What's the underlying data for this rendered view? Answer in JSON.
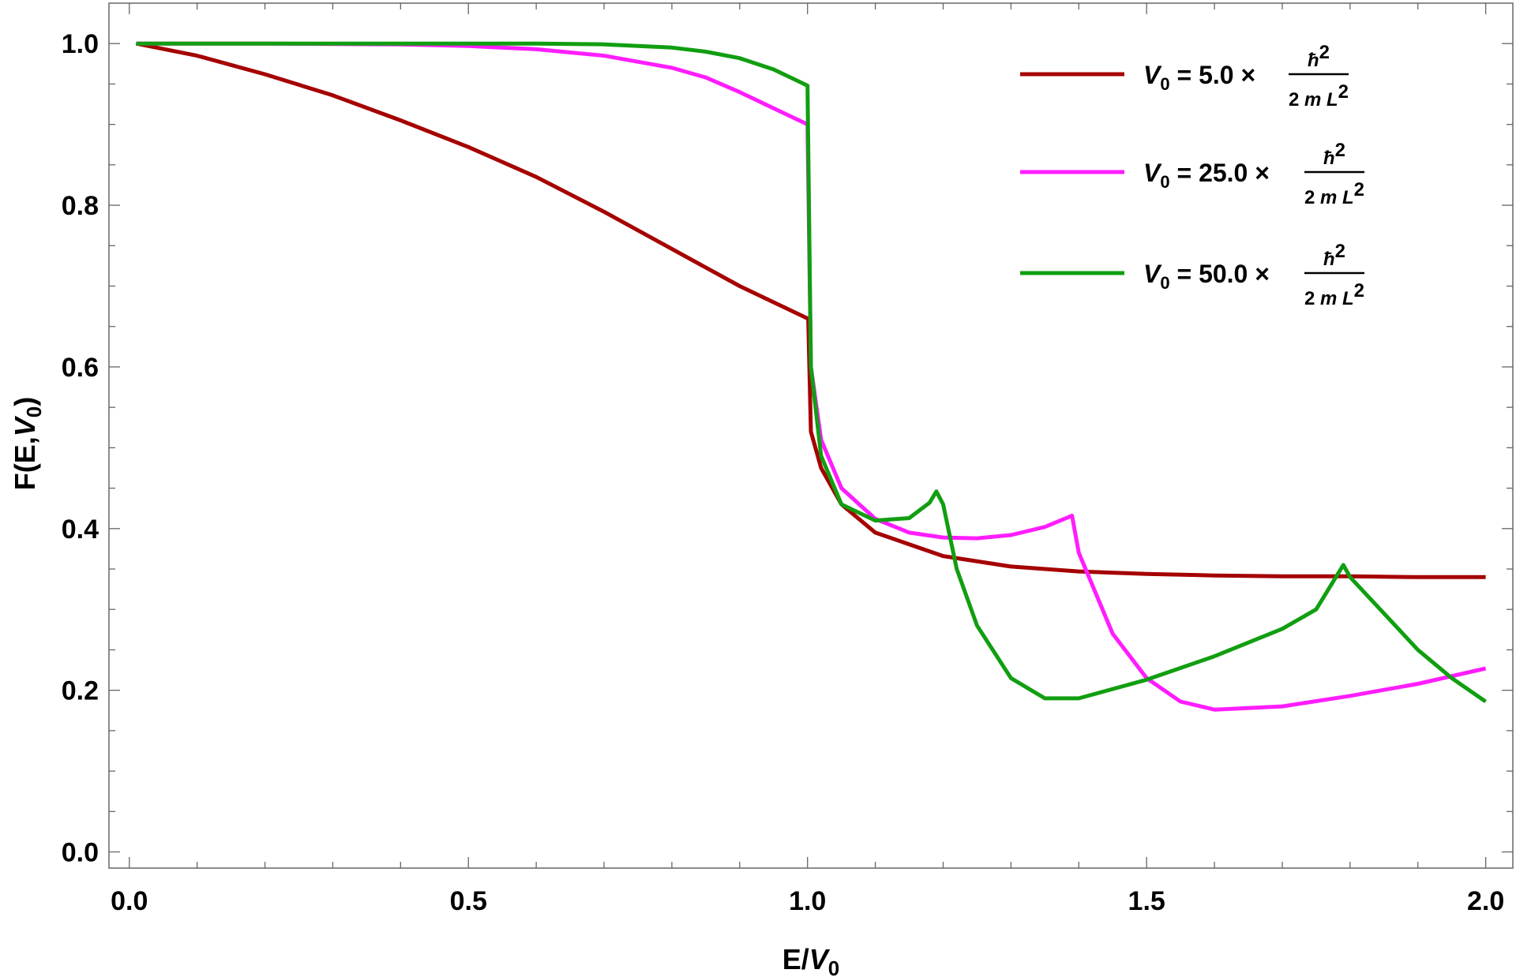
{
  "chart_data": {
    "type": "line",
    "xlabel": "E/V0",
    "ylabel": "F(E,V0)",
    "xlim": [
      -0.03,
      2.04
    ],
    "ylim": [
      -0.02,
      1.05
    ],
    "xticks": [
      {
        "value": 0.0,
        "label": "0.0"
      },
      {
        "value": 0.5,
        "label": "0.5"
      },
      {
        "value": 1.0,
        "label": "1.0"
      },
      {
        "value": 1.5,
        "label": "1.5"
      },
      {
        "value": 2.0,
        "label": "2.0"
      }
    ],
    "yticks": [
      {
        "value": 0.0,
        "label": "0.0"
      },
      {
        "value": 0.2,
        "label": "0.2"
      },
      {
        "value": 0.4,
        "label": "0.4"
      },
      {
        "value": 0.6,
        "label": "0.6"
      },
      {
        "value": 0.8,
        "label": "0.8"
      },
      {
        "value": 1.0,
        "label": "1.0"
      }
    ],
    "grid": false,
    "legend_position": "top-right",
    "series": [
      {
        "name": "V0 = 5.0 × ħ²/2mL²",
        "legend_value": "5.0",
        "color": "#a50000",
        "points": [
          [
            0.01,
            1.0
          ],
          [
            0.1,
            0.985
          ],
          [
            0.2,
            0.962
          ],
          [
            0.3,
            0.936
          ],
          [
            0.4,
            0.905
          ],
          [
            0.5,
            0.872
          ],
          [
            0.6,
            0.835
          ],
          [
            0.7,
            0.792
          ],
          [
            0.8,
            0.746
          ],
          [
            0.9,
            0.7
          ],
          [
            1.0,
            0.66
          ],
          [
            1.001,
            0.66
          ],
          [
            1.005,
            0.52
          ],
          [
            1.02,
            0.475
          ],
          [
            1.05,
            0.43
          ],
          [
            1.1,
            0.395
          ],
          [
            1.2,
            0.366
          ],
          [
            1.3,
            0.353
          ],
          [
            1.4,
            0.347
          ],
          [
            1.5,
            0.344
          ],
          [
            1.6,
            0.342
          ],
          [
            1.7,
            0.341
          ],
          [
            1.8,
            0.341
          ],
          [
            1.9,
            0.34
          ],
          [
            2.0,
            0.34
          ]
        ]
      },
      {
        "name": "V0 = 25.0 × ħ²/2mL²",
        "legend_value": "25.0",
        "color": "#ff1dff",
        "points": [
          [
            0.01,
            1.0
          ],
          [
            0.2,
            1.0
          ],
          [
            0.4,
            0.999
          ],
          [
            0.5,
            0.997
          ],
          [
            0.6,
            0.993
          ],
          [
            0.7,
            0.985
          ],
          [
            0.8,
            0.97
          ],
          [
            0.85,
            0.958
          ],
          [
            0.9,
            0.94
          ],
          [
            0.95,
            0.92
          ],
          [
            1.0,
            0.9
          ],
          [
            1.005,
            0.6
          ],
          [
            1.02,
            0.51
          ],
          [
            1.05,
            0.45
          ],
          [
            1.1,
            0.412
          ],
          [
            1.15,
            0.395
          ],
          [
            1.2,
            0.389
          ],
          [
            1.25,
            0.388
          ],
          [
            1.3,
            0.392
          ],
          [
            1.35,
            0.402
          ],
          [
            1.39,
            0.416
          ],
          [
            1.4,
            0.37
          ],
          [
            1.45,
            0.27
          ],
          [
            1.5,
            0.215
          ],
          [
            1.55,
            0.186
          ],
          [
            1.6,
            0.176
          ],
          [
            1.7,
            0.18
          ],
          [
            1.8,
            0.193
          ],
          [
            1.9,
            0.208
          ],
          [
            2.0,
            0.227
          ]
        ]
      },
      {
        "name": "V0 = 50.0 × ħ²/2mL²",
        "legend_value": "50.0",
        "color": "#119e11",
        "points": [
          [
            0.01,
            1.0
          ],
          [
            0.3,
            1.0
          ],
          [
            0.5,
            1.0
          ],
          [
            0.6,
            1.0
          ],
          [
            0.7,
            0.999
          ],
          [
            0.8,
            0.995
          ],
          [
            0.85,
            0.99
          ],
          [
            0.9,
            0.982
          ],
          [
            0.95,
            0.968
          ],
          [
            1.0,
            0.948
          ],
          [
            1.005,
            0.6
          ],
          [
            1.02,
            0.49
          ],
          [
            1.05,
            0.43
          ],
          [
            1.1,
            0.41
          ],
          [
            1.15,
            0.413
          ],
          [
            1.18,
            0.432
          ],
          [
            1.19,
            0.446
          ],
          [
            1.2,
            0.43
          ],
          [
            1.22,
            0.35
          ],
          [
            1.25,
            0.28
          ],
          [
            1.3,
            0.215
          ],
          [
            1.35,
            0.19
          ],
          [
            1.4,
            0.19
          ],
          [
            1.5,
            0.213
          ],
          [
            1.6,
            0.242
          ],
          [
            1.7,
            0.276
          ],
          [
            1.75,
            0.3
          ],
          [
            1.79,
            0.355
          ],
          [
            1.8,
            0.34
          ],
          [
            1.85,
            0.295
          ],
          [
            1.9,
            0.25
          ],
          [
            1.95,
            0.215
          ],
          [
            2.0,
            0.186
          ]
        ]
      }
    ]
  }
}
